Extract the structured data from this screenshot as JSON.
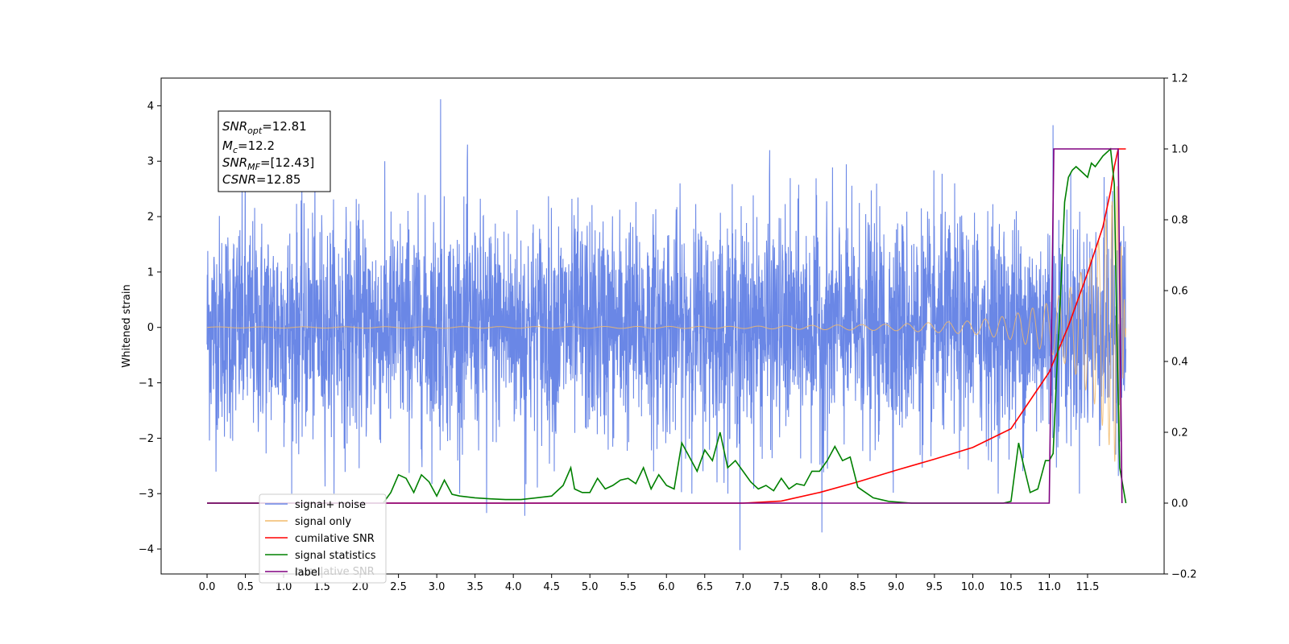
{
  "chart_data": {
    "type": "line",
    "title": "",
    "xlabel": "",
    "ylabel": "Whitened strain",
    "xlim": [
      -0.6,
      12.5
    ],
    "ylim": [
      -4.45,
      4.5
    ],
    "y2lim": [
      -0.2,
      1.2
    ],
    "x_ticks": [
      "0.0",
      "0.5",
      "1.0",
      "1.5",
      "2.0",
      "2.5",
      "3.0",
      "3.5",
      "4.0",
      "4.5",
      "5.0",
      "5.5",
      "6.0",
      "6.5",
      "7.0",
      "7.5",
      "8.0",
      "8.5",
      "9.0",
      "9.5",
      "10.0",
      "10.5",
      "11.0",
      "11.5"
    ],
    "y_ticks": [
      "−4",
      "−3",
      "−2",
      "−1",
      "0",
      "1",
      "2",
      "3",
      "4"
    ],
    "y2_ticks": [
      "−0.2",
      "0.0",
      "0.2",
      "0.4",
      "0.6",
      "0.8",
      "1.0",
      "1.2"
    ],
    "grid": false,
    "legend_placement": "lower-left",
    "annotation": {
      "snr_opt_base": "SNR",
      "snr_opt_sub": "opt",
      "snr_opt_value": "=12.81",
      "mc_base": "M",
      "mc_sub": "c",
      "mc_value": "=12.2",
      "snr_mf_base": "SNR",
      "snr_mf_sub": "MF",
      "snr_mf_value": "=[12.43]",
      "csnr_base": "CSNR",
      "csnr_value": "=12.85"
    },
    "series": [
      {
        "name": "signal+ noise",
        "axis": "left",
        "color": "#6a87e6",
        "kind": "noise",
        "x_range": [
          0.0,
          12.0
        ],
        "typical_amplitude": 1.6,
        "peaks": [
          [
            3.05,
            4.12
          ],
          [
            11.05,
            3.65
          ],
          [
            7.35,
            3.2
          ],
          [
            3.4,
            3.3
          ],
          [
            0.5,
            2.9
          ],
          [
            6.96,
            -4.02
          ],
          [
            4.15,
            -3.4
          ],
          [
            3.65,
            -3.35
          ],
          [
            8.03,
            -3.7
          ],
          [
            5.85,
            0.82
          ]
        ]
      },
      {
        "name": "signal only",
        "axis": "left",
        "color": "#f2ba6a",
        "kind": "chirp",
        "x_range": [
          0.0,
          12.0
        ],
        "envelope": [
          [
            0.0,
            0.01
          ],
          [
            7.0,
            0.02
          ],
          [
            9.0,
            0.06
          ],
          [
            10.0,
            0.12
          ],
          [
            10.5,
            0.22
          ],
          [
            11.0,
            0.45
          ],
          [
            11.3,
            0.75
          ],
          [
            11.6,
            1.4
          ],
          [
            11.8,
            2.2
          ],
          [
            11.9,
            2.6
          ],
          [
            11.95,
            1.2
          ],
          [
            12.0,
            0.05
          ]
        ]
      },
      {
        "name": "cumilative SNR",
        "axis": "right",
        "color": "#ff0000",
        "x": [
          0.0,
          6.0,
          7.0,
          7.5,
          8.0,
          8.5,
          9.0,
          9.5,
          10.0,
          10.5,
          11.0,
          11.25,
          11.5,
          11.7,
          11.8,
          11.85,
          11.9,
          12.0
        ],
        "values": [
          0.0,
          0.0,
          0.0,
          0.006,
          0.03,
          0.06,
          0.093,
          0.124,
          0.157,
          0.21,
          0.37,
          0.5,
          0.65,
          0.78,
          0.88,
          0.95,
          1.0,
          1.0
        ]
      },
      {
        "name": "signal statistics",
        "axis": "right",
        "color": "#008000",
        "x": [
          0.0,
          2.3,
          2.4,
          2.5,
          2.6,
          2.7,
          2.8,
          2.9,
          3.0,
          3.1,
          3.2,
          3.3,
          3.5,
          3.7,
          3.9,
          4.1,
          4.3,
          4.5,
          4.65,
          4.75,
          4.8,
          4.9,
          5.0,
          5.1,
          5.2,
          5.3,
          5.4,
          5.5,
          5.6,
          5.7,
          5.8,
          5.9,
          6.0,
          6.1,
          6.2,
          6.3,
          6.4,
          6.5,
          6.6,
          6.7,
          6.8,
          6.9,
          7.0,
          7.1,
          7.2,
          7.3,
          7.4,
          7.5,
          7.6,
          7.7,
          7.8,
          7.9,
          8.0,
          8.1,
          8.2,
          8.3,
          8.4,
          8.5,
          8.6,
          8.7,
          8.9,
          9.2,
          9.5,
          10.0,
          10.4,
          10.5,
          10.6,
          10.65,
          10.75,
          10.85,
          10.95,
          11.0,
          11.05,
          11.1,
          11.15,
          11.2,
          11.25,
          11.3,
          11.35,
          11.4,
          11.5,
          11.55,
          11.6,
          11.7,
          11.8,
          11.85,
          11.88,
          11.92,
          12.0
        ],
        "values": [
          0.0,
          0.0,
          0.03,
          0.08,
          0.07,
          0.03,
          0.08,
          0.06,
          0.02,
          0.065,
          0.025,
          0.02,
          0.015,
          0.012,
          0.01,
          0.01,
          0.015,
          0.02,
          0.05,
          0.1,
          0.04,
          0.03,
          0.03,
          0.07,
          0.04,
          0.05,
          0.065,
          0.07,
          0.055,
          0.1,
          0.04,
          0.08,
          0.05,
          0.04,
          0.17,
          0.13,
          0.09,
          0.15,
          0.12,
          0.2,
          0.1,
          0.12,
          0.09,
          0.06,
          0.04,
          0.05,
          0.035,
          0.07,
          0.04,
          0.055,
          0.05,
          0.09,
          0.09,
          0.12,
          0.16,
          0.12,
          0.13,
          0.045,
          0.03,
          0.015,
          0.005,
          0.0,
          0.0,
          0.0,
          0.0,
          0.005,
          0.17,
          0.12,
          0.03,
          0.04,
          0.12,
          0.12,
          0.14,
          0.38,
          0.6,
          0.85,
          0.92,
          0.94,
          0.95,
          0.94,
          0.92,
          0.96,
          0.95,
          0.98,
          1.0,
          0.9,
          0.5,
          0.1,
          0.0
        ]
      },
      {
        "name": "label",
        "axis": "right",
        "color": "#800080",
        "x": [
          0.0,
          11.0,
          11.06,
          11.9,
          11.95
        ],
        "values": [
          0.0,
          0.0,
          1.0,
          1.0,
          0.0
        ]
      }
    ],
    "legend_ghost_text": "cumilative SNR"
  }
}
